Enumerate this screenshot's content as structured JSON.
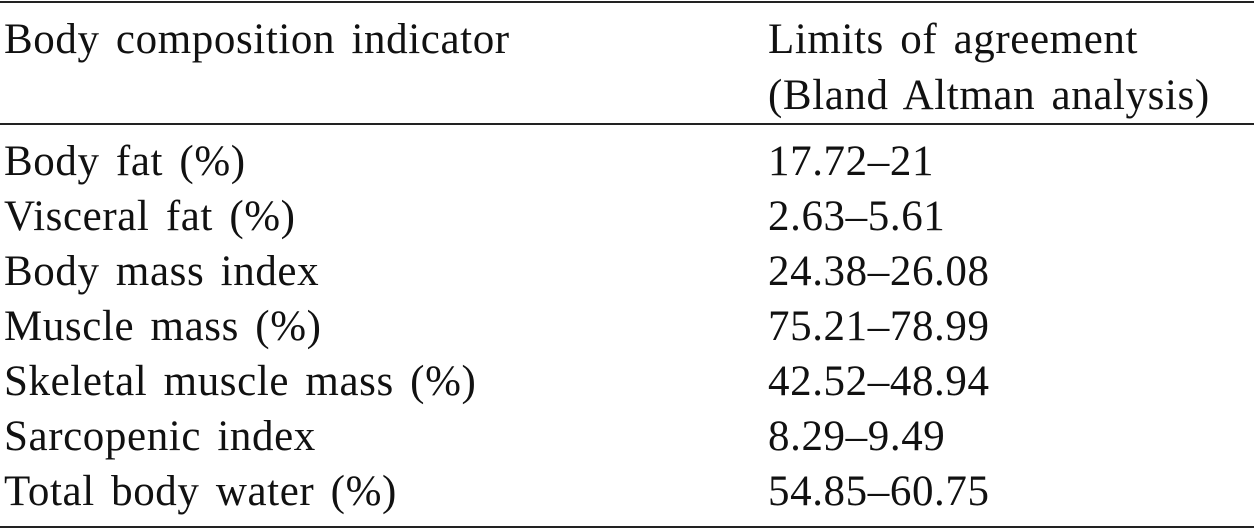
{
  "table": {
    "header": {
      "col1": "Body composition indicator",
      "col2_line1": "Limits of agreement",
      "col2_line2": "(Bland Altman analysis)"
    },
    "rows": [
      {
        "indicator": "Body fat (%)",
        "limits": "17.72–21"
      },
      {
        "indicator": "Visceral fat (%)",
        "limits": "2.63–5.61"
      },
      {
        "indicator": "Body mass index",
        "limits": "24.38–26.08"
      },
      {
        "indicator": "Muscle mass (%)",
        "limits": "75.21–78.99"
      },
      {
        "indicator": "Skeletal muscle mass (%)",
        "limits": "42.52–48.94"
      },
      {
        "indicator": "Sarcopenic index",
        "limits": "8.29–9.49"
      },
      {
        "indicator": "Total body water (%)",
        "limits": "54.85–60.75"
      }
    ]
  }
}
